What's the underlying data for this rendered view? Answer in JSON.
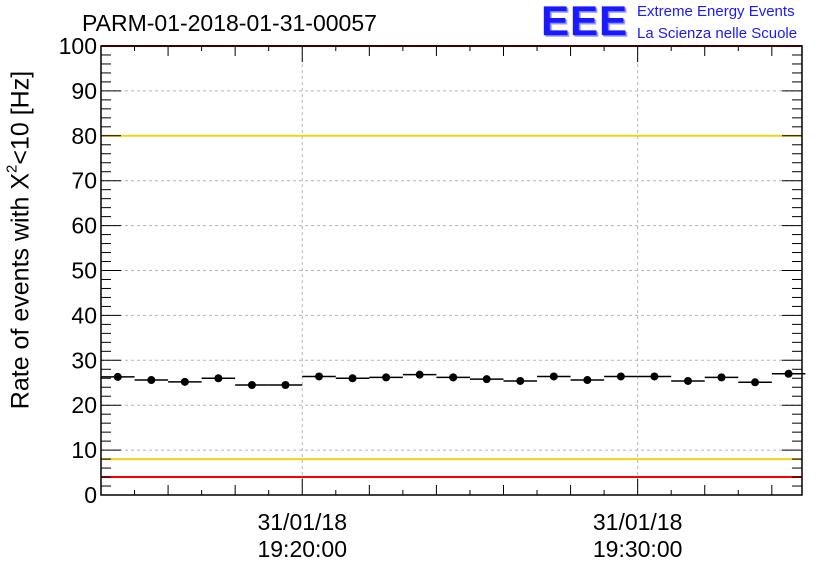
{
  "run_title": "PARM-01-2018-01-31-00057",
  "logo": {
    "mark": "EEE",
    "line1": "Extreme Energy Events",
    "line2": "La Scienza nelle Scuole",
    "color": "#1a1aff"
  },
  "chart_data": {
    "type": "scatter",
    "title": "PARM-01-2018-01-31-00057",
    "ylabel": {
      "prefix": "Rate of events with X",
      "superscript": "2",
      "suffix": "<10 [Hz]"
    },
    "ylim": [
      0,
      100
    ],
    "yticks": [
      0,
      10,
      20,
      30,
      40,
      50,
      60,
      70,
      80,
      90,
      100
    ],
    "xlim_minutes": [
      14.0,
      34.9
    ],
    "xticks": [
      {
        "minute": 20,
        "date": "31/01/18",
        "time": "19:20:00"
      },
      {
        "minute": 30,
        "date": "31/01/18",
        "time": "19:30:00"
      }
    ],
    "grid": true,
    "bin_width_minutes": 1,
    "x_minutes": [
      14.5,
      15.5,
      16.5,
      17.5,
      18.5,
      19.5,
      20.5,
      21.5,
      22.5,
      23.5,
      24.5,
      25.5,
      26.5,
      27.5,
      28.5,
      29.5,
      30.5,
      31.5,
      32.5,
      33.5,
      34.5
    ],
    "values": [
      26.3,
      25.6,
      25.2,
      26.0,
      24.5,
      24.5,
      26.4,
      26.0,
      26.2,
      26.8,
      26.2,
      25.8,
      25.4,
      26.4,
      25.6,
      26.4,
      26.4,
      25.4,
      26.2,
      25.1,
      27.0
    ],
    "reference_lines": [
      {
        "y": 100,
        "color": "#ff0000"
      },
      {
        "y": 80,
        "color": "#f2d21b"
      },
      {
        "y": 8,
        "color": "#f2d21b"
      },
      {
        "y": 4,
        "color": "#ff0000"
      }
    ]
  }
}
